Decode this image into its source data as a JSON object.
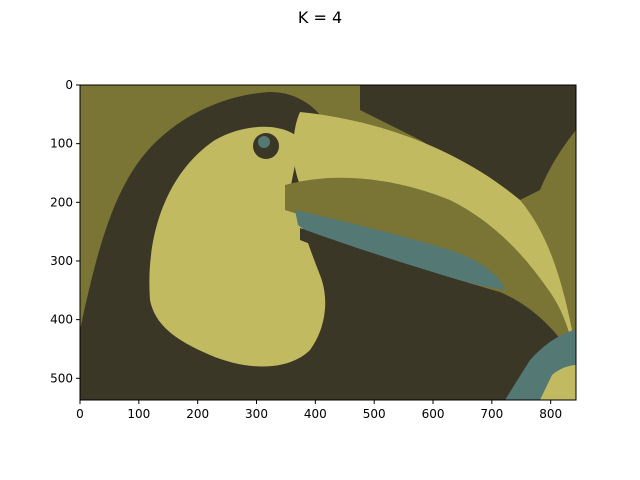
{
  "figure": {
    "title": "K = 4",
    "image": {
      "extent_x": [
        0,
        843
      ],
      "extent_y": [
        0,
        537
      ],
      "description_colors": {
        "dark": "#3a3727",
        "olive": "#7a7435",
        "yellow": "#c1ba60",
        "teal": "#547874"
      }
    },
    "x_ticks": [
      "0",
      "100",
      "200",
      "300",
      "400",
      "500",
      "600",
      "700",
      "800"
    ],
    "y_ticks": [
      "0",
      "100",
      "200",
      "300",
      "400",
      "500"
    ],
    "x_tick_values": [
      0,
      100,
      200,
      300,
      400,
      500,
      600,
      700,
      800
    ],
    "y_tick_values": [
      0,
      100,
      200,
      300,
      400,
      500
    ]
  }
}
